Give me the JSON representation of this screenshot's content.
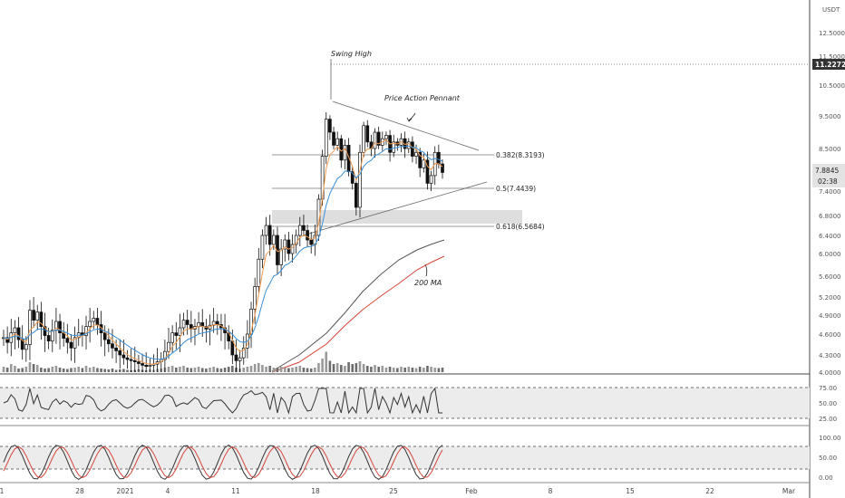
{
  "chart_data": {
    "type": "candlestick",
    "currency_label": "USDT",
    "price_axis": {
      "ticks": [
        {
          "label": "12.5000",
          "value": 12.5
        },
        {
          "label": "11.5000",
          "value": 11.5
        },
        {
          "label": "10.5000",
          "value": 10.5
        },
        {
          "label": "9.5000",
          "value": 9.5
        },
        {
          "label": "8.5000",
          "value": 8.5
        },
        {
          "label": "7.4000",
          "value": 7.4
        },
        {
          "label": "6.8000",
          "value": 6.8
        },
        {
          "label": "6.4000",
          "value": 6.4
        },
        {
          "label": "6.0000",
          "value": 6.0
        },
        {
          "label": "5.6000",
          "value": 5.6
        },
        {
          "label": "5.2000",
          "value": 5.2
        },
        {
          "label": "4.9000",
          "value": 4.9
        },
        {
          "label": "4.6000",
          "value": 4.6
        },
        {
          "label": "4.3000",
          "value": 4.3
        },
        {
          "label": "4.0000",
          "value": 4.0
        }
      ]
    },
    "time_axis": [
      "1",
      "28",
      "2021",
      "4",
      "11",
      "18",
      "25",
      "Feb",
      "8",
      "15",
      "22",
      "Mar"
    ],
    "swing_high_price": "11.2272",
    "current_price": "7.8845",
    "countdown": "02:38",
    "annotations": {
      "swing_high": "Swing High",
      "pennant": "Price Action Pennant",
      "ma_label": "200 MA"
    },
    "fib_levels": [
      {
        "label": "0.382(8.3193)",
        "value": 8.3193
      },
      {
        "label": "0.5(7.4439)",
        "value": 7.4439
      },
      {
        "label": "0.618(6.5684)",
        "value": 6.5684
      }
    ],
    "rsi": {
      "ticks": [
        {
          "label": "75.00",
          "value": 75
        },
        {
          "label": "50.00",
          "value": 50
        },
        {
          "label": "25.00",
          "value": 25
        }
      ],
      "upper": 70,
      "lower": 30
    },
    "stoch": {
      "ticks": [
        {
          "label": "100.00",
          "value": 100
        },
        {
          "label": "50.00",
          "value": 50
        },
        {
          "label": "0.00",
          "value": 0
        }
      ],
      "upper": 80,
      "lower": 20
    },
    "closes": [
      4.55,
      4.48,
      4.62,
      4.7,
      4.52,
      4.38,
      4.45,
      4.98,
      4.82,
      4.95,
      4.72,
      4.58,
      4.5,
      4.66,
      4.8,
      4.62,
      4.54,
      4.48,
      4.4,
      4.55,
      4.62,
      4.58,
      4.72,
      4.8,
      4.85,
      4.75,
      4.62,
      4.52,
      4.46,
      4.4,
      4.36,
      4.3,
      4.25,
      4.22,
      4.2,
      4.18,
      4.15,
      4.12,
      4.1,
      4.12,
      4.14,
      4.18,
      4.22,
      4.35,
      4.48,
      4.62,
      4.58,
      4.7,
      4.82,
      4.75,
      4.68,
      4.72,
      4.78,
      4.72,
      4.68,
      4.74,
      4.8,
      4.75,
      4.7,
      4.62,
      4.5,
      4.3,
      4.2,
      4.25,
      4.4,
      4.6,
      5.0,
      5.4,
      5.9,
      6.4,
      6.6,
      6.2,
      6.4,
      5.8,
      6.1,
      6.3,
      6.0,
      6.2,
      6.4,
      6.6,
      6.5,
      6.3,
      6.2,
      6.4,
      7.2,
      8.3,
      9.4,
      9.0,
      8.6,
      8.8,
      8.2,
      8.6,
      7.9,
      7.6,
      7.0,
      8.4,
      9.2,
      8.7,
      8.5,
      9.0,
      8.6,
      8.8,
      8.9,
      8.4,
      8.7,
      8.6,
      8.8,
      8.5,
      8.7,
      8.3,
      8.4,
      8.0,
      8.2,
      7.6,
      7.8,
      8.4,
      8.1,
      7.88
    ],
    "volumes": [
      12,
      10,
      18,
      14,
      8,
      9,
      12,
      22,
      18,
      16,
      10,
      8,
      9,
      12,
      14,
      10,
      8,
      7,
      9,
      10,
      12,
      9,
      14,
      10,
      12,
      9,
      8,
      7,
      6,
      8,
      5,
      6,
      7,
      5,
      4,
      5,
      6,
      5,
      4,
      6,
      5,
      7,
      8,
      10,
      12,
      14,
      10,
      12,
      14,
      10,
      9,
      10,
      12,
      9,
      8,
      10,
      12,
      9,
      8,
      10,
      12,
      14,
      10,
      8,
      10,
      12,
      14,
      18,
      20,
      16,
      12,
      14,
      10,
      9,
      12,
      10,
      9,
      10,
      12,
      14,
      10,
      9,
      8,
      10,
      20,
      30,
      45,
      25,
      18,
      20,
      16,
      14,
      22,
      18,
      20,
      24,
      18,
      14,
      12,
      16,
      12,
      14,
      10,
      12,
      10,
      9,
      12,
      10,
      12,
      10,
      9,
      12,
      10,
      14,
      12,
      10,
      9,
      10
    ]
  }
}
